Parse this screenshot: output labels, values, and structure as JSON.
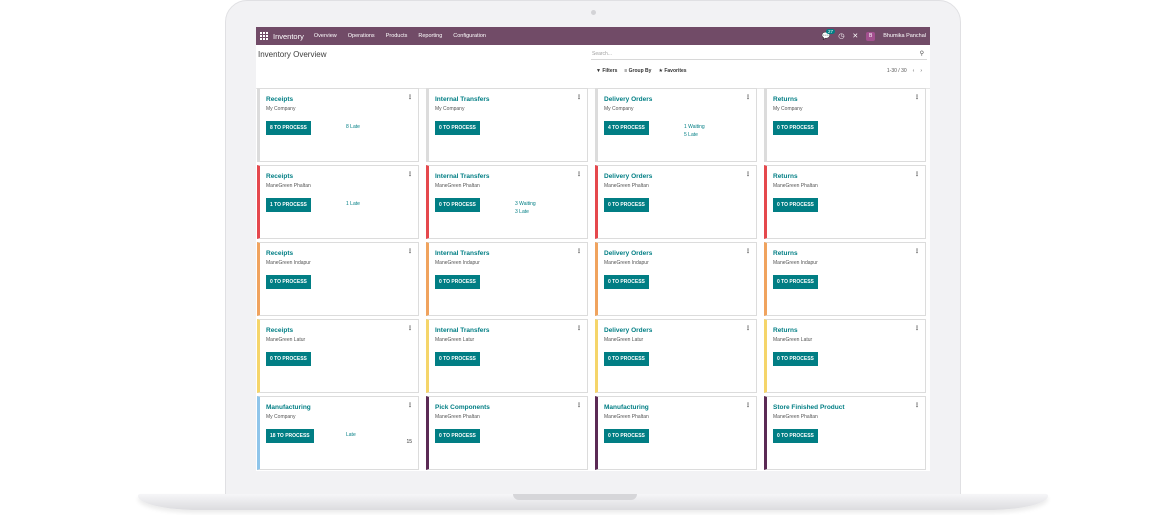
{
  "navbar": {
    "app_name": "Inventory",
    "menu": [
      "Overview",
      "Operations",
      "Products",
      "Reporting",
      "Configuration"
    ],
    "chat_count": "27",
    "avatar_initial": "B",
    "user_name": "Bhumika Panchal"
  },
  "page": {
    "title": "Inventory Overview",
    "search_placeholder": "Search...",
    "filters_label": "Filters",
    "group_by_label": "Group By",
    "favorites_label": "Favorites",
    "pager": "1-30 / 30"
  },
  "colors": {
    "primary": "#714b67",
    "accent": "#017e84",
    "border_red": "#e5484d",
    "border_orange": "#f0a35e",
    "border_yellow": "#f5d56a",
    "border_blue": "#8fc5ea",
    "border_purple": "#5b2a55"
  },
  "cards": [
    {
      "title": "Receipts",
      "company": "My Company",
      "button": "8 TO PROCESS",
      "stats": [
        "8 Late"
      ],
      "num": "",
      "color": ""
    },
    {
      "title": "Internal Transfers",
      "company": "My Company",
      "button": "0 TO PROCESS",
      "stats": [],
      "num": "",
      "color": ""
    },
    {
      "title": "Delivery Orders",
      "company": "My Company",
      "button": "4 TO PROCESS",
      "stats": [
        "1 Waiting",
        "5 Late"
      ],
      "num": "",
      "color": ""
    },
    {
      "title": "Returns",
      "company": "My Company",
      "button": "0 TO PROCESS",
      "stats": [],
      "num": "",
      "color": ""
    },
    {
      "title": "Receipts",
      "company": "ManeGreen Phaltan",
      "button": "1 TO PROCESS",
      "stats": [
        "1 Late"
      ],
      "num": "",
      "color": "#e5484d"
    },
    {
      "title": "Internal Transfers",
      "company": "ManeGreen Phaltan",
      "button": "0 TO PROCESS",
      "stats": [
        "3 Waiting",
        "3 Late"
      ],
      "num": "",
      "color": "#e5484d"
    },
    {
      "title": "Delivery Orders",
      "company": "ManeGreen Phaltan",
      "button": "0 TO PROCESS",
      "stats": [],
      "num": "",
      "color": "#e5484d"
    },
    {
      "title": "Returns",
      "company": "ManeGreen Phaltan",
      "button": "0 TO PROCESS",
      "stats": [],
      "num": "",
      "color": "#e5484d"
    },
    {
      "title": "Receipts",
      "company": "ManeGreen Indapur",
      "button": "0 TO PROCESS",
      "stats": [],
      "num": "",
      "color": "#f0a35e"
    },
    {
      "title": "Internal Transfers",
      "company": "ManeGreen Indapur",
      "button": "0 TO PROCESS",
      "stats": [],
      "num": "",
      "color": "#f0a35e"
    },
    {
      "title": "Delivery Orders",
      "company": "ManeGreen Indapur",
      "button": "0 TO PROCESS",
      "stats": [],
      "num": "",
      "color": "#f0a35e"
    },
    {
      "title": "Returns",
      "company": "ManeGreen Indapur",
      "button": "0 TO PROCESS",
      "stats": [],
      "num": "",
      "color": "#f0a35e"
    },
    {
      "title": "Receipts",
      "company": "ManeGreen Latur",
      "button": "0 TO PROCESS",
      "stats": [],
      "num": "",
      "color": "#f5d56a"
    },
    {
      "title": "Internal Transfers",
      "company": "ManeGreen Latur",
      "button": "0 TO PROCESS",
      "stats": [],
      "num": "",
      "color": "#f5d56a"
    },
    {
      "title": "Delivery Orders",
      "company": "ManeGreen Latur",
      "button": "0 TO PROCESS",
      "stats": [],
      "num": "",
      "color": "#f5d56a"
    },
    {
      "title": "Returns",
      "company": "ManeGreen Latur",
      "button": "0 TO PROCESS",
      "stats": [],
      "num": "",
      "color": "#f5d56a"
    },
    {
      "title": "Manufacturing",
      "company": "My Company",
      "button": "18 TO PROCESS",
      "stats": [
        "Late"
      ],
      "num": "15",
      "color": "#8fc5ea"
    },
    {
      "title": "Pick Components",
      "company": "ManeGreen Phaltan",
      "button": "0 TO PROCESS",
      "stats": [],
      "num": "",
      "color": "#5b2a55"
    },
    {
      "title": "Manufacturing",
      "company": "ManeGreen Phaltan",
      "button": "0 TO PROCESS",
      "stats": [],
      "num": "",
      "color": "#5b2a55"
    },
    {
      "title": "Store Finished Product",
      "company": "ManeGreen Phaltan",
      "button": "0 TO PROCESS",
      "stats": [],
      "num": "",
      "color": "#5b2a55"
    }
  ]
}
